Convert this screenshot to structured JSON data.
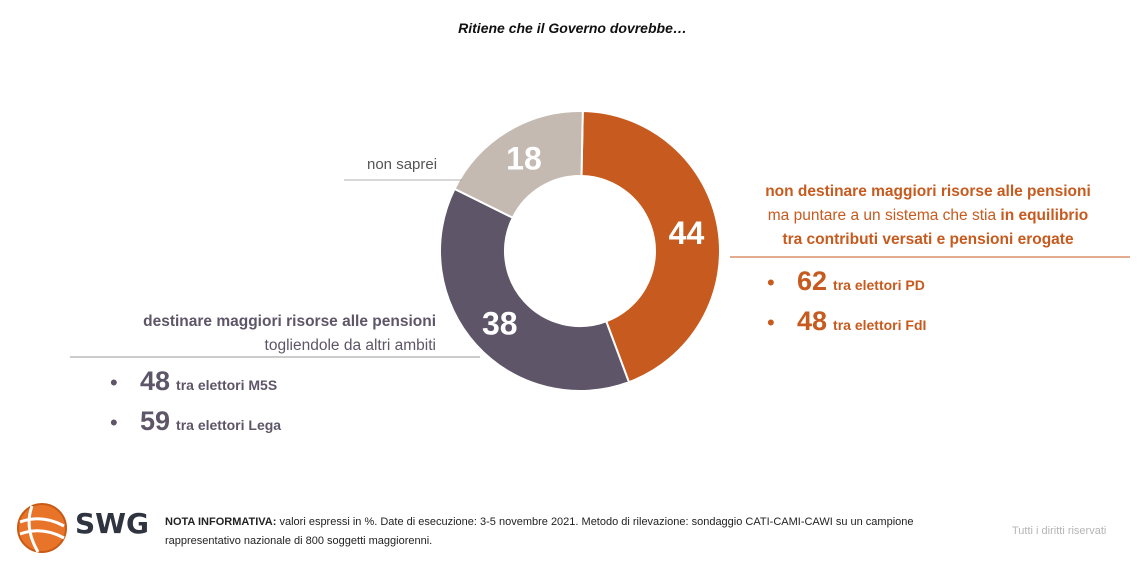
{
  "title": "Ritiene che il Governo dovrebbe…",
  "chart_data": {
    "type": "pie",
    "style": "donut",
    "slices": [
      {
        "label": "non destinare maggiori risorse alle pensioni ma puntare a un sistema che stia in equilibrio tra contributi versati e pensioni erogate",
        "value": 44,
        "color": "#C75A1E"
      },
      {
        "label": "destinare maggiori risorse alle pensioni togliendole da altri ambiti",
        "value": 38,
        "color": "#5E5668"
      },
      {
        "label": "non saprei",
        "value": 18,
        "color": "#C4BAB1"
      }
    ]
  },
  "annotations": {
    "non_saprei": "non saprei",
    "right": {
      "line1": "non destinare maggiori risorse alle pensioni",
      "line2_a": "ma puntare a un sistema che stia ",
      "line2_b": "in equilibrio",
      "line3": "tra contributi versati e pensioni erogate",
      "bullets": [
        {
          "value": "62",
          "text": "tra elettori PD"
        },
        {
          "value": "48",
          "text": "tra elettori FdI"
        }
      ]
    },
    "left": {
      "line1": "destinare maggiori risorse alle pensioni",
      "line2": "togliendole da altri ambiti",
      "bullets": [
        {
          "value": "48",
          "text": "tra elettori M5S"
        },
        {
          "value": "59",
          "text": "tra elettori Lega"
        }
      ]
    }
  },
  "footer": {
    "note_bold": "NOTA INFORMATIVA:",
    "note_text": " valori espressi in %. Date di esecuzione: 3-5 novembre 2021. Metodo di rilevazione: sondaggio CATI-CAMI-CAWI su un campione rappresentativo nazionale di 800 soggetti maggiorenni.",
    "rights": "Tutti i diritti riservati",
    "logo": "SWG",
    "bullet_char": "•"
  }
}
